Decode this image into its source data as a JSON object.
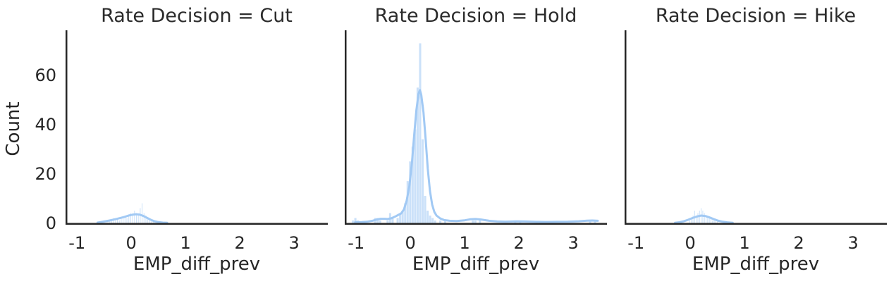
{
  "axes": {
    "ylabel": "Count",
    "xlabel": "EMP_diff_prev",
    "yticks": [
      0,
      20,
      40,
      60
    ],
    "xticks": [
      -1,
      0,
      1,
      2,
      3
    ]
  },
  "style": {
    "bar_color": "#a1c9f4",
    "bar_opacity": 0.55,
    "kde_color": "#a1c9f4",
    "kde_width": 3,
    "spine_color": "#262626",
    "text_color": "#262626",
    "background": "#ffffff"
  },
  "chart_data": [
    {
      "type": "bar",
      "subtype": "histogram+kde",
      "title": "Rate Decision = Cut",
      "xlabel": "EMP_diff_prev",
      "ylabel": "Count",
      "xlim": [
        -1.21,
        3.62
      ],
      "ylim": [
        0,
        78
      ],
      "xticks": [
        -1,
        0,
        1,
        2,
        3
      ],
      "yticks": [
        0,
        20,
        40,
        60
      ],
      "bin_width": 0.016,
      "bars": [
        [
          -0.5,
          1
        ],
        [
          -0.465,
          1
        ],
        [
          -0.43,
          1
        ],
        [
          -0.395,
          1
        ],
        [
          -0.36,
          1
        ],
        [
          -0.325,
          2
        ],
        [
          -0.29,
          1
        ],
        [
          -0.255,
          2
        ],
        [
          -0.22,
          1
        ],
        [
          -0.185,
          2
        ],
        [
          -0.15,
          2
        ],
        [
          -0.115,
          3
        ],
        [
          -0.08,
          2
        ],
        [
          -0.045,
          3
        ],
        [
          -0.01,
          4
        ],
        [
          0.025,
          3
        ],
        [
          0.06,
          5
        ],
        [
          0.095,
          4
        ],
        [
          0.13,
          3
        ],
        [
          0.165,
          6
        ],
        [
          0.2,
          8
        ],
        [
          0.235,
          4
        ],
        [
          0.27,
          3
        ],
        [
          0.305,
          2
        ],
        [
          0.34,
          2
        ],
        [
          0.375,
          1
        ],
        [
          0.41,
          1
        ]
      ],
      "kde": [
        [
          -0.62,
          0.15
        ],
        [
          -0.55,
          0.4
        ],
        [
          -0.48,
          0.7
        ],
        [
          -0.4,
          1.0
        ],
        [
          -0.33,
          1.35
        ],
        [
          -0.26,
          1.7
        ],
        [
          -0.19,
          2.1
        ],
        [
          -0.12,
          2.5
        ],
        [
          -0.05,
          3.0
        ],
        [
          0.02,
          3.35
        ],
        [
          0.09,
          3.55
        ],
        [
          0.15,
          3.4
        ],
        [
          0.22,
          2.9
        ],
        [
          0.29,
          2.1
        ],
        [
          0.36,
          1.3
        ],
        [
          0.43,
          0.7
        ],
        [
          0.5,
          0.35
        ],
        [
          0.58,
          0.15
        ],
        [
          0.66,
          0.05
        ]
      ]
    },
    {
      "type": "bar",
      "subtype": "histogram+kde",
      "title": "Rate Decision = Hold",
      "xlabel": "EMP_diff_prev",
      "ylabel": "Count",
      "xlim": [
        -1.21,
        3.62
      ],
      "ylim": [
        0,
        78
      ],
      "xticks": [
        -1,
        0,
        1,
        2,
        3
      ],
      "yticks": [
        0,
        20,
        40,
        60
      ],
      "bin_width": 0.046,
      "bars": [
        [
          -1.06,
          1
        ],
        [
          -1.014,
          2
        ],
        [
          -0.968,
          1
        ],
        [
          -0.65,
          2
        ],
        [
          -0.604,
          2
        ],
        [
          -0.558,
          1
        ],
        [
          -0.42,
          1
        ],
        [
          -0.374,
          4
        ],
        [
          -0.328,
          2
        ],
        [
          -0.235,
          2
        ],
        [
          -0.189,
          4
        ],
        [
          -0.143,
          5
        ],
        [
          -0.097,
          8
        ],
        [
          -0.051,
          17
        ],
        [
          -0.005,
          25
        ],
        [
          0.041,
          31
        ],
        [
          0.087,
          38
        ],
        [
          0.133,
          55
        ],
        [
          0.179,
          73
        ],
        [
          0.225,
          34
        ],
        [
          0.271,
          11
        ],
        [
          0.317,
          5
        ],
        [
          0.363,
          3
        ],
        [
          0.409,
          2
        ],
        [
          0.455,
          1
        ],
        [
          0.55,
          1
        ],
        [
          0.64,
          1
        ],
        [
          1.15,
          1
        ],
        [
          1.196,
          1
        ],
        [
          1.28,
          1
        ],
        [
          1.93,
          1
        ],
        [
          2.02,
          1
        ],
        [
          3.31,
          1
        ],
        [
          3.4,
          1
        ]
      ],
      "kde": [
        [
          -1.02,
          0.3
        ],
        [
          -0.9,
          0.35
        ],
        [
          -0.8,
          0.5
        ],
        [
          -0.7,
          0.9
        ],
        [
          -0.62,
          1.4
        ],
        [
          -0.55,
          1.7
        ],
        [
          -0.48,
          1.7
        ],
        [
          -0.42,
          1.6
        ],
        [
          -0.35,
          1.9
        ],
        [
          -0.28,
          2.6
        ],
        [
          -0.22,
          3.3
        ],
        [
          -0.17,
          3.9
        ],
        [
          -0.12,
          5.5
        ],
        [
          -0.07,
          9
        ],
        [
          -0.02,
          15
        ],
        [
          0.03,
          25
        ],
        [
          0.07,
          36
        ],
        [
          0.11,
          46
        ],
        [
          0.15,
          52.5
        ],
        [
          0.175,
          54
        ],
        [
          0.2,
          52
        ],
        [
          0.24,
          45
        ],
        [
          0.28,
          34
        ],
        [
          0.32,
          22
        ],
        [
          0.36,
          13
        ],
        [
          0.4,
          7.5
        ],
        [
          0.44,
          4.5
        ],
        [
          0.48,
          3
        ],
        [
          0.55,
          1.8
        ],
        [
          0.62,
          1.2
        ],
        [
          0.72,
          0.9
        ],
        [
          0.85,
          0.8
        ],
        [
          1.0,
          1.1
        ],
        [
          1.1,
          1.5
        ],
        [
          1.2,
          1.6
        ],
        [
          1.3,
          1.4
        ],
        [
          1.45,
          0.9
        ],
        [
          1.6,
          0.6
        ],
        [
          1.75,
          0.5
        ],
        [
          1.95,
          0.65
        ],
        [
          2.1,
          0.6
        ],
        [
          2.3,
          0.45
        ],
        [
          2.5,
          0.4
        ],
        [
          2.7,
          0.45
        ],
        [
          2.9,
          0.5
        ],
        [
          3.1,
          0.7
        ],
        [
          3.25,
          0.95
        ],
        [
          3.35,
          1.0
        ],
        [
          3.45,
          0.9
        ]
      ]
    },
    {
      "type": "bar",
      "subtype": "histogram+kde",
      "title": "Rate Decision = Hike",
      "xlabel": "EMP_diff_prev",
      "ylabel": "Count",
      "xlim": [
        -1.21,
        3.62
      ],
      "ylim": [
        0,
        78
      ],
      "xticks": [
        -1,
        0,
        1,
        2,
        3
      ],
      "yticks": [
        0,
        20,
        40,
        60
      ],
      "bin_width": 0.016,
      "bars": [
        [
          -0.01,
          1
        ],
        [
          0.02,
          2
        ],
        [
          0.05,
          3
        ],
        [
          0.08,
          5
        ],
        [
          0.11,
          3
        ],
        [
          0.14,
          4
        ],
        [
          0.17,
          5
        ],
        [
          0.2,
          6
        ],
        [
          0.23,
          5
        ],
        [
          0.26,
          4
        ],
        [
          0.29,
          3
        ],
        [
          0.32,
          2
        ],
        [
          0.35,
          2
        ],
        [
          0.38,
          2
        ],
        [
          0.41,
          1
        ],
        [
          0.44,
          1
        ],
        [
          0.47,
          1
        ],
        [
          0.5,
          1
        ]
      ],
      "kde": [
        [
          -0.28,
          0.1
        ],
        [
          -0.2,
          0.3
        ],
        [
          -0.12,
          0.7
        ],
        [
          -0.04,
          1.3
        ],
        [
          0.04,
          2.0
        ],
        [
          0.12,
          2.6
        ],
        [
          0.2,
          3.0
        ],
        [
          0.28,
          2.8
        ],
        [
          0.36,
          2.2
        ],
        [
          0.44,
          1.5
        ],
        [
          0.52,
          0.9
        ],
        [
          0.6,
          0.5
        ],
        [
          0.68,
          0.25
        ],
        [
          0.78,
          0.1
        ]
      ]
    }
  ]
}
